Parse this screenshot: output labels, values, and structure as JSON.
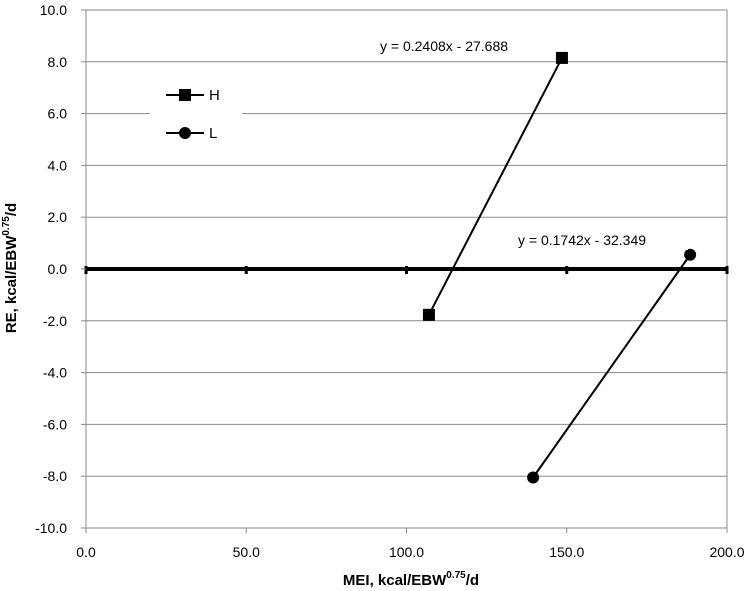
{
  "chart_data": {
    "type": "scatter",
    "xlabel_main": "MEI, kcal/EBW",
    "xlabel_sup": "0.75",
    "xlabel_tail": "/d",
    "ylabel_main": "RE, kcal/EBW",
    "ylabel_sup": "0.75",
    "ylabel_tail": "/d",
    "xlim": [
      0,
      200
    ],
    "ylim": [
      -10,
      10
    ],
    "x_ticks": [
      0,
      50,
      100,
      150,
      200
    ],
    "x_tick_labels": [
      "0.0",
      "50.0",
      "100.0",
      "150.0",
      "200.0"
    ],
    "y_ticks": [
      10,
      8,
      6,
      4,
      2,
      0,
      -2,
      -4,
      -6,
      -8,
      -10
    ],
    "y_tick_labels": [
      "10.0",
      "8.0",
      "6.0",
      "4.0",
      "2.0",
      "0.0",
      "-2.0",
      "-4.0",
      "-6.0",
      "-8.0",
      "-10.0"
    ],
    "grid": true,
    "zero_line": true,
    "legend_position": "upper-left",
    "series": [
      {
        "name": "H",
        "marker": "square",
        "color": "#000000",
        "x": [
          107,
          148.5
        ],
        "y": [
          -1.77,
          8.15
        ],
        "equation": "y = 0.2408x - 27.688"
      },
      {
        "name": "L",
        "marker": "circle",
        "color": "#000000",
        "x": [
          139.5,
          188.5
        ],
        "y": [
          -8.05,
          0.55
        ],
        "equation": "y = 0.1742x - 32.349"
      }
    ]
  }
}
